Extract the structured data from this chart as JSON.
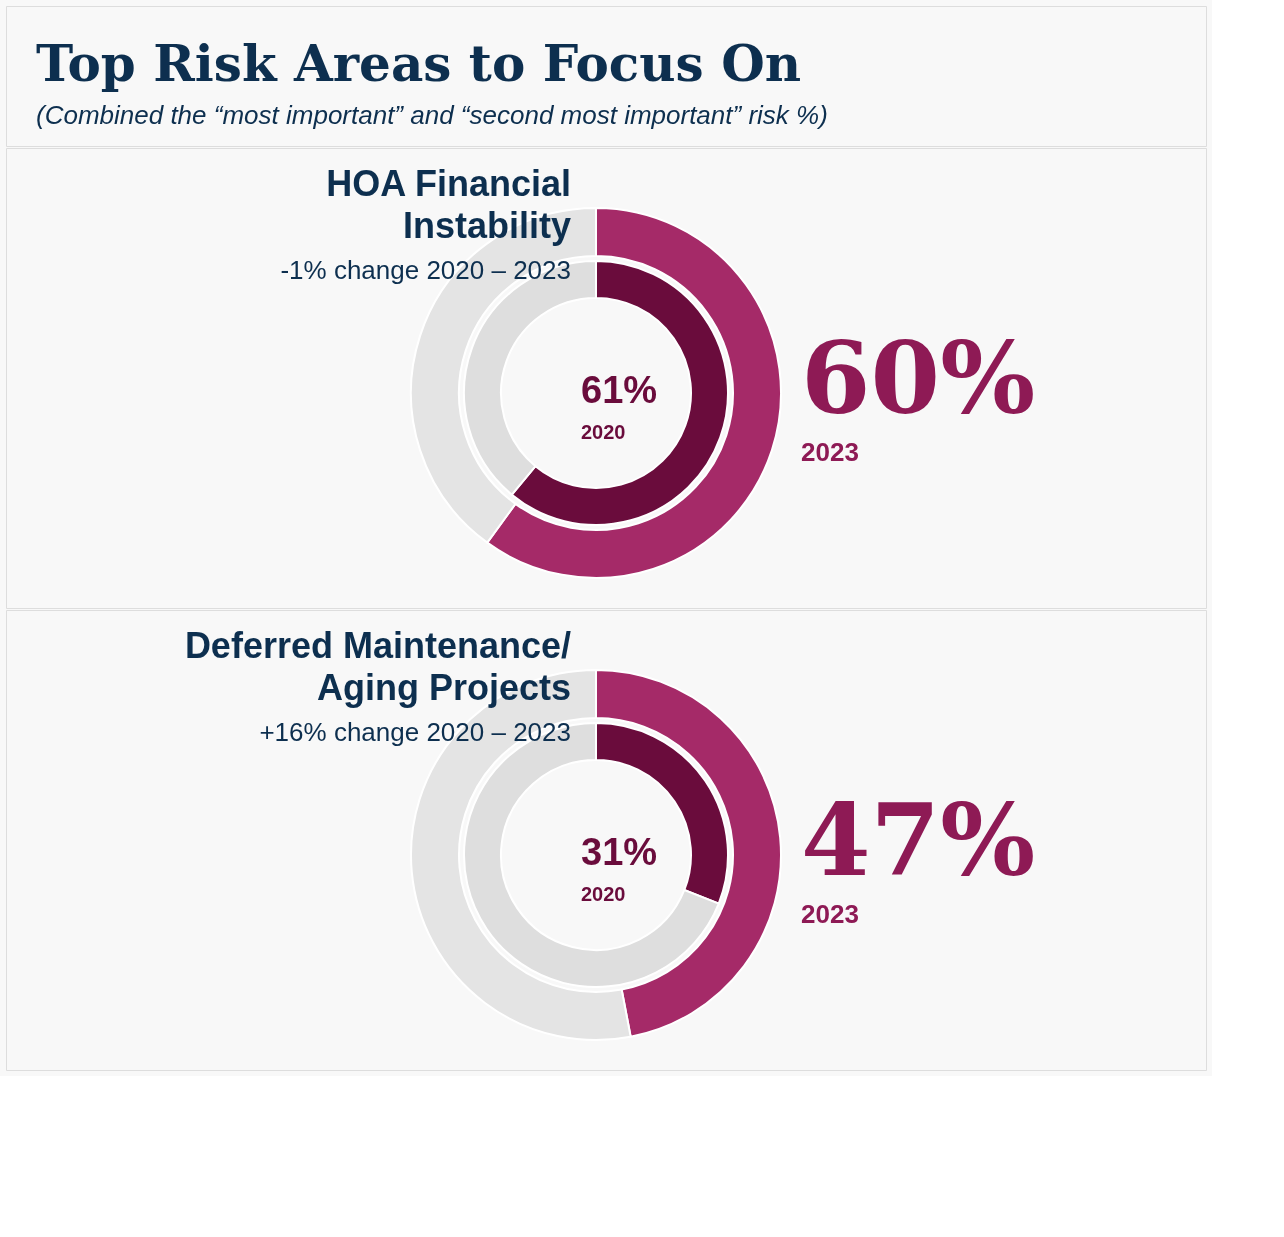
{
  "chart_data": [
    {
      "type": "other",
      "title": "Top Risk Areas to Focus On",
      "subtitle": "(Combined the “most important” and “second most important” risk %)"
    },
    {
      "type": "donut",
      "title": [
        "HOA Financial",
        "Instability"
      ],
      "subtitle": "-1% change 2020 – 2023",
      "categories": [
        null,
        null
      ],
      "series": [
        {
          "name": "2023",
          "values": [
            60,
            40
          ],
          "colors": [
            "#a52a68",
            "#e4e4e4"
          ],
          "value_labels": [
            "60%",
            null
          ]
        },
        {
          "name": "2020",
          "values": [
            61,
            39
          ],
          "colors": [
            "#6a0c3c",
            "#dedede"
          ],
          "value_labels": [
            "61%",
            null
          ]
        }
      ]
    },
    {
      "type": "donut",
      "title": [
        "Deferred Maintenance/",
        "Aging Projects"
      ],
      "subtitle": "+16% change 2020 – 2023",
      "categories": [
        null,
        null
      ],
      "series": [
        {
          "name": "2023",
          "values": [
            47,
            53
          ],
          "colors": [
            "#a52a68",
            "#e4e4e4"
          ],
          "value_labels": [
            "47%",
            null
          ]
        },
        {
          "name": "2020",
          "values": [
            31,
            69
          ],
          "colors": [
            "#6a0c3c",
            "#dedede"
          ],
          "value_labels": [
            "31%",
            null
          ]
        }
      ]
    }
  ]
}
